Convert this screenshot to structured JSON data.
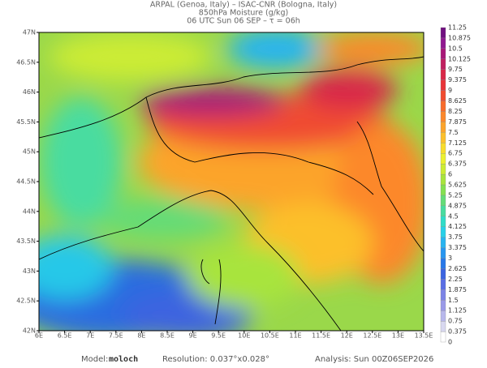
{
  "header": {
    "line1": "ARPAL (Genoa, Italy)  –  ISAC-CNR (Bologna, Italy)",
    "line2": "850hPa Moisture (g/kg)",
    "line3": "06 UTC Sun 06 SEP  –  τ = 06h"
  },
  "map": {
    "lat_ticks": [
      {
        "value": 47,
        "label": "47N"
      },
      {
        "value": 46.5,
        "label": "46.5N"
      },
      {
        "value": 46,
        "label": "46N"
      },
      {
        "value": 45.5,
        "label": "45.5N"
      },
      {
        "value": 45,
        "label": "45N"
      },
      {
        "value": 44.5,
        "label": "44.5N"
      },
      {
        "value": 44,
        "label": "44N"
      },
      {
        "value": 43.5,
        "label": "43.5N"
      },
      {
        "value": 43,
        "label": "43N"
      },
      {
        "value": 42.5,
        "label": "42.5N"
      },
      {
        "value": 42,
        "label": "42N"
      }
    ],
    "lat_range": [
      42,
      47
    ],
    "lon_ticks": [
      {
        "value": 6,
        "label": "6E"
      },
      {
        "value": 6.5,
        "label": "6.5E"
      },
      {
        "value": 7,
        "label": "7E"
      },
      {
        "value": 7.5,
        "label": "7.5E"
      },
      {
        "value": 8,
        "label": "8E"
      },
      {
        "value": 8.5,
        "label": "8.5E"
      },
      {
        "value": 9,
        "label": "9E"
      },
      {
        "value": 9.5,
        "label": "9.5E"
      },
      {
        "value": 10,
        "label": "10E"
      },
      {
        "value": 10.5,
        "label": "10.5E"
      },
      {
        "value": 11,
        "label": "11E"
      },
      {
        "value": 11.5,
        "label": "11.5E"
      },
      {
        "value": 12,
        "label": "12E"
      },
      {
        "value": 12.5,
        "label": "12.5E"
      },
      {
        "value": 13,
        "label": "13E"
      },
      {
        "value": 13.5,
        "label": "13.5E"
      }
    ],
    "lon_range": [
      6,
      13.5
    ]
  },
  "colorbar": {
    "ticks": [
      0,
      0.375,
      0.75,
      1.125,
      1.5,
      1.875,
      2.25,
      2.625,
      3,
      3.375,
      3.75,
      4.125,
      4.5,
      4.875,
      5.25,
      5.625,
      6,
      6.375,
      6.75,
      7.125,
      7.5,
      7.875,
      8.25,
      8.625,
      9,
      9.375,
      9.75,
      10.125,
      10.5,
      10.875,
      11.25
    ],
    "colors": [
      "#ffffff",
      "#d8d8f0",
      "#b8b8ec",
      "#9a9ae8",
      "#7c84e6",
      "#5a6ee4",
      "#3c64e0",
      "#2878e8",
      "#2896f0",
      "#28b4f0",
      "#28d0e8",
      "#30dcc8",
      "#48dca0",
      "#64dc78",
      "#84e050",
      "#a8e43c",
      "#ccec34",
      "#ecf030",
      "#f8dc2c",
      "#fcc02c",
      "#fca42c",
      "#fc882c",
      "#f86c2c",
      "#f04c30",
      "#e83438",
      "#d82848",
      "#c02060",
      "#a81878",
      "#901890",
      "#701080"
    ]
  },
  "footer": {
    "model_label": "Model:",
    "model": "moloch",
    "resolution": "Resolution: 0.037°x0.028°",
    "analysis": "Analysis: Sun 00Z06SEP2026"
  }
}
